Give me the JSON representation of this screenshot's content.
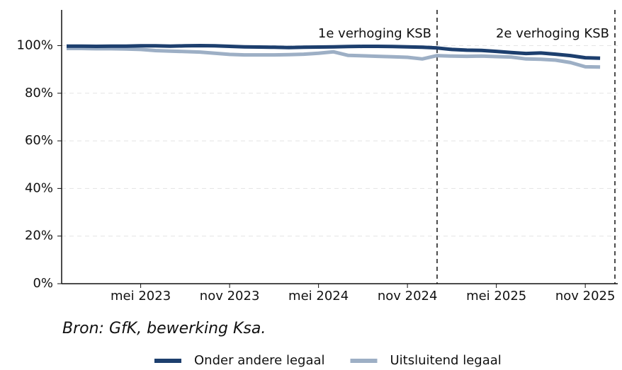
{
  "chart_data": {
    "type": "line",
    "source": "Bron: GfK, bewerking Ksa.",
    "x": [
      "2022-12",
      "2023-01",
      "2023-02",
      "2023-03",
      "2023-04",
      "2023-05",
      "2023-06",
      "2023-07",
      "2023-08",
      "2023-09",
      "2023-10",
      "2023-11",
      "2023-12",
      "2024-01",
      "2024-02",
      "2024-03",
      "2024-04",
      "2024-05",
      "2024-06",
      "2024-07",
      "2024-08",
      "2024-09",
      "2024-10",
      "2024-11",
      "2024-12",
      "2025-01",
      "2025-02",
      "2025-03",
      "2025-04",
      "2025-05",
      "2025-06",
      "2025-07",
      "2025-08",
      "2025-09",
      "2025-10",
      "2025-11",
      "2025-12"
    ],
    "series": [
      {
        "name": "Onder andere legaal",
        "color": "#1d3f6e",
        "values": [
          99.8,
          99.8,
          99.7,
          99.8,
          99.8,
          99.9,
          99.9,
          99.8,
          99.9,
          100,
          99.9,
          99.7,
          99.5,
          99.4,
          99.3,
          99.2,
          99.3,
          99.4,
          99.5,
          99.6,
          99.7,
          99.7,
          99.6,
          99.5,
          99.3,
          99.0,
          98.4,
          98.1,
          98.0,
          97.6,
          97.1,
          96.7,
          96.9,
          96.4,
          95.8,
          94.9,
          94.7
        ]
      },
      {
        "name": "Uitsluitend legaal",
        "color": "#9dafc5",
        "values": [
          98.8,
          98.8,
          98.7,
          98.7,
          98.6,
          98.4,
          97.9,
          97.7,
          97.5,
          97.3,
          96.8,
          96.3,
          96.1,
          96.1,
          96.1,
          96.2,
          96.4,
          96.8,
          97.4,
          95.9,
          95.7,
          95.5,
          95.3,
          95.1,
          94.4,
          95.8,
          95.6,
          95.5,
          95.6,
          95.4,
          95.2,
          94.4,
          94.3,
          93.9,
          92.9,
          91.1,
          91.0
        ]
      }
    ],
    "xlim": [
      "2022-12",
      "2026-01"
    ],
    "xticks": [
      {
        "value": "2023-05",
        "label": "mei 2023"
      },
      {
        "value": "2023-11",
        "label": "nov 2023"
      },
      {
        "value": "2024-05",
        "label": "mei 2024"
      },
      {
        "value": "2024-11",
        "label": "nov 2024"
      },
      {
        "value": "2025-05",
        "label": "mei 2025"
      },
      {
        "value": "2025-11",
        "label": "nov 2025"
      }
    ],
    "ylim": [
      0,
      115
    ],
    "yticks": [
      {
        "value": 0,
        "label": "0%"
      },
      {
        "value": 20,
        "label": "20%"
      },
      {
        "value": 40,
        "label": "40%"
      },
      {
        "value": 60,
        "label": "60%"
      },
      {
        "value": 80,
        "label": "80%"
      },
      {
        "value": 100,
        "label": "100%"
      }
    ],
    "grid": true,
    "annotations": [
      {
        "x": "2025-01",
        "label": "1e verhoging KSB"
      },
      {
        "x": "2026-01",
        "label": "2e verhoging KSB"
      }
    ]
  }
}
